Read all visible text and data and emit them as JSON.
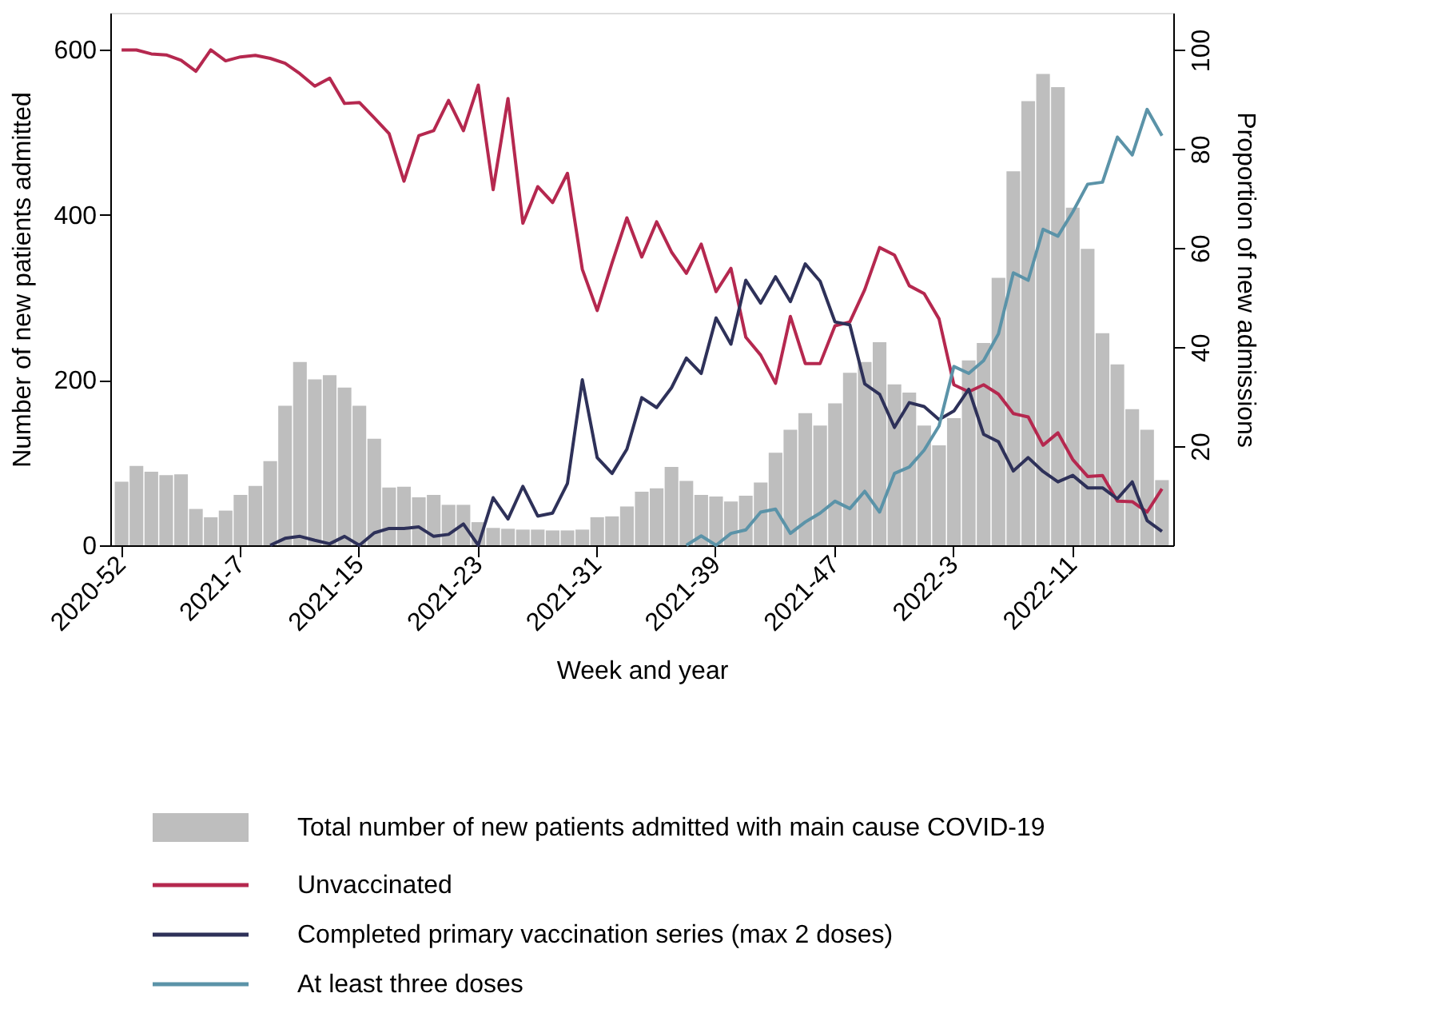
{
  "chart_data": {
    "type": "bar",
    "xlabel": "Week and year",
    "ylabel": "Number of new patients admitted",
    "y2label": "Proportion of new admissions",
    "categories": [
      "2020-52",
      null,
      null,
      null,
      null,
      null,
      null,
      null,
      "2021-7",
      null,
      null,
      null,
      null,
      null,
      null,
      null,
      "2021-15",
      null,
      null,
      null,
      null,
      null,
      null,
      null,
      "2021-23",
      null,
      null,
      null,
      null,
      null,
      null,
      null,
      "2021-31",
      null,
      null,
      null,
      null,
      null,
      null,
      null,
      "2021-39",
      null,
      null,
      null,
      null,
      null,
      null,
      null,
      "2021-47",
      null,
      null,
      null,
      null,
      null,
      null,
      null,
      "2022-3",
      null,
      null,
      null,
      null,
      null,
      null,
      null,
      "2022-11",
      null,
      null,
      null,
      null,
      null,
      null
    ],
    "series": [
      {
        "name": "Total number of new patients admitted with main cause COVID-19",
        "axis": "y",
        "color": "#bebebe",
        "values": [
          77,
          96,
          89,
          85,
          86,
          44,
          34,
          42,
          61,
          72,
          102,
          169,
          222,
          201,
          206,
          191,
          169,
          129,
          70,
          71,
          58,
          61,
          49,
          49,
          28,
          21,
          20,
          19,
          19,
          18,
          18,
          19,
          34,
          35,
          47,
          65,
          69,
          95,
          78,
          61,
          59,
          53,
          60,
          76,
          112,
          140,
          160,
          145,
          172,
          209,
          222,
          246,
          195,
          185,
          145,
          121,
          154,
          224,
          245,
          324,
          453,
          538,
          571,
          555,
          409,
          359,
          257,
          219,
          165,
          140,
          79
        ]
      },
      {
        "name": "Unvaccinated",
        "type": "line",
        "axis": "y2",
        "color": "#b5284f",
        "values": [
          100,
          100,
          99.2,
          99,
          97.9,
          95.7,
          100,
          97.8,
          98.6,
          98.9,
          98.3,
          97.3,
          95.2,
          92.7,
          94.3,
          89.2,
          89.4,
          86.3,
          83.1,
          73.5,
          82.7,
          83.7,
          89.8,
          83.7,
          92.9,
          71.8,
          90.2,
          65,
          72.4,
          69.2,
          75.1,
          55.7,
          47.4,
          57,
          66.1,
          58.2,
          65.3,
          59.2,
          54.9,
          60.8,
          51.2,
          55.9,
          42,
          38.4,
          32.7,
          46.2,
          36.7,
          36.7,
          44.3,
          45.1,
          51.6,
          60.1,
          58.6,
          52.4,
          50.8,
          45.7,
          32.4,
          31,
          32.4,
          30.5,
          26.6,
          25.9,
          20.2,
          22.7,
          17.3,
          13.9,
          14.1,
          8.9,
          8.8,
          6.7,
          11.4
        ]
      },
      {
        "name": "Completed primary vaccination series (max 2 doses)",
        "type": "line",
        "axis": "y2",
        "color": "#2e3159",
        "values": [
          null,
          null,
          null,
          null,
          null,
          null,
          null,
          null,
          null,
          null,
          0,
          1.4,
          1.8,
          1,
          0.3,
          1.8,
          0,
          2.5,
          3.4,
          3.4,
          3.7,
          1.8,
          2.2,
          4.3,
          0,
          9.6,
          5.3,
          11.9,
          5.9,
          6.5,
          12.5,
          33.4,
          17.7,
          14.5,
          19.4,
          29.8,
          27.8,
          31.8,
          37.8,
          34.7,
          45.9,
          40.6,
          53.5,
          48.9,
          54.2,
          49.2,
          56.8,
          53.3,
          45.1,
          44.5,
          32.6,
          30.5,
          23.8,
          28.8,
          28,
          25.4,
          27.1,
          31.5,
          22.4,
          20.9,
          15,
          17.7,
          14.9,
          12.8,
          14.1,
          11.6,
          11.6,
          9.4,
          12.8,
          5,
          2.8
        ]
      },
      {
        "name": "At least three doses",
        "type": "line",
        "axis": "y2",
        "color": "#5b93a8",
        "values": [
          null,
          null,
          null,
          null,
          null,
          null,
          null,
          null,
          null,
          null,
          null,
          null,
          null,
          null,
          null,
          null,
          null,
          null,
          null,
          null,
          null,
          null,
          null,
          null,
          null,
          null,
          null,
          null,
          null,
          null,
          null,
          null,
          null,
          null,
          null,
          null,
          null,
          null,
          0,
          1.9,
          0,
          2.4,
          3.1,
          6.7,
          7.3,
          2.4,
          4.7,
          6.5,
          8.9,
          7.4,
          10.9,
          6.7,
          14.5,
          15.8,
          19.2,
          24.1,
          36.1,
          34.7,
          37.3,
          42.7,
          55,
          53.5,
          63.8,
          62.4,
          67.3,
          72.9,
          73.3,
          82.4,
          78.8,
          88,
          82.7
        ]
      }
    ],
    "ylim": [
      0,
      645
    ],
    "yticks": [
      0,
      200,
      400,
      600
    ],
    "y2lim": [
      0,
      107.5
    ],
    "y2ticks": [
      20,
      40,
      60,
      80,
      100
    ],
    "grid": false,
    "legend": "bottom"
  }
}
